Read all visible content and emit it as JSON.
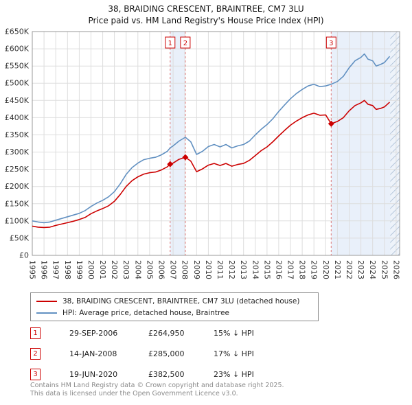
{
  "title": {
    "line1": "38, BRAIDING CRESCENT, BRAINTREE, CM7 3LU",
    "line2": "Price paid vs. HM Land Registry's House Price Index (HPI)"
  },
  "chart_data": {
    "type": "line",
    "title": "38, BRAIDING CRESCENT, BRAINTREE, CM7 3LU — Price paid vs. HPI",
    "x_range": [
      1995,
      2026.3
    ],
    "y_range": [
      0,
      650
    ],
    "y_unit": "£K",
    "grid": true,
    "y_ticks": [
      {
        "value": 0,
        "label": "£0"
      },
      {
        "value": 50,
        "label": "£50K"
      },
      {
        "value": 100,
        "label": "£100K"
      },
      {
        "value": 150,
        "label": "£150K"
      },
      {
        "value": 200,
        "label": "£200K"
      },
      {
        "value": 250,
        "label": "£250K"
      },
      {
        "value": 300,
        "label": "£300K"
      },
      {
        "value": 350,
        "label": "£350K"
      },
      {
        "value": 400,
        "label": "£400K"
      },
      {
        "value": 450,
        "label": "£450K"
      },
      {
        "value": 500,
        "label": "£500K"
      },
      {
        "value": 550,
        "label": "£550K"
      },
      {
        "value": 600,
        "label": "£600K"
      },
      {
        "value": 650,
        "label": "£650K"
      }
    ],
    "x_ticks": [
      "1995",
      "1996",
      "1997",
      "1998",
      "1999",
      "2000",
      "2001",
      "2002",
      "2003",
      "2004",
      "2005",
      "2006",
      "2007",
      "2008",
      "2009",
      "2010",
      "2011",
      "2012",
      "2013",
      "2014",
      "2015",
      "2016",
      "2017",
      "2018",
      "2019",
      "2020",
      "2021",
      "2022",
      "2023",
      "2024",
      "2025",
      "2026"
    ],
    "series": [
      {
        "name": "38, BRAIDING CRESCENT, BRAINTREE, CM7 3LU (detached house)",
        "color": "#cc0000",
        "points": [
          [
            1995,
            85
          ],
          [
            1995.5,
            82
          ],
          [
            1996,
            81
          ],
          [
            1996.5,
            82
          ],
          [
            1997,
            87
          ],
          [
            1997.5,
            91
          ],
          [
            1998,
            95
          ],
          [
            1998.5,
            99
          ],
          [
            1999,
            104
          ],
          [
            1999.5,
            110
          ],
          [
            2000,
            121
          ],
          [
            2000.5,
            129
          ],
          [
            2001,
            136
          ],
          [
            2001.5,
            144
          ],
          [
            2002,
            157
          ],
          [
            2002.5,
            177
          ],
          [
            2003,
            200
          ],
          [
            2003.5,
            217
          ],
          [
            2004,
            228
          ],
          [
            2004.5,
            236
          ],
          [
            2005,
            240
          ],
          [
            2005.5,
            242
          ],
          [
            2006,
            248
          ],
          [
            2006.5,
            257
          ],
          [
            2006.75,
            264.95
          ],
          [
            2007,
            268
          ],
          [
            2007.5,
            279
          ],
          [
            2008.04,
            285
          ],
          [
            2008.5,
            274
          ],
          [
            2009,
            243
          ],
          [
            2009.5,
            251
          ],
          [
            2010,
            262
          ],
          [
            2010.5,
            267
          ],
          [
            2011,
            261
          ],
          [
            2011.5,
            267
          ],
          [
            2012,
            259
          ],
          [
            2012.5,
            264
          ],
          [
            2013,
            267
          ],
          [
            2013.5,
            276
          ],
          [
            2014,
            290
          ],
          [
            2014.5,
            304
          ],
          [
            2015,
            315
          ],
          [
            2015.5,
            330
          ],
          [
            2016,
            347
          ],
          [
            2016.5,
            363
          ],
          [
            2017,
            378
          ],
          [
            2017.5,
            390
          ],
          [
            2018,
            400
          ],
          [
            2018.5,
            408
          ],
          [
            2019,
            413
          ],
          [
            2019.5,
            407
          ],
          [
            2020,
            408
          ],
          [
            2020.47,
            382.5
          ],
          [
            2021,
            389
          ],
          [
            2021.5,
            400
          ],
          [
            2022,
            420
          ],
          [
            2022.5,
            435
          ],
          [
            2023,
            443
          ],
          [
            2023.3,
            450
          ],
          [
            2023.6,
            439
          ],
          [
            2024,
            435
          ],
          [
            2024.3,
            424
          ],
          [
            2024.7,
            427
          ],
          [
            2025,
            431
          ],
          [
            2025.45,
            445
          ]
        ]
      },
      {
        "name": "HPI: Average price, detached house, Braintree",
        "color": "#6190c1",
        "points": [
          [
            1995,
            100
          ],
          [
            1995.5,
            97
          ],
          [
            1996,
            95
          ],
          [
            1996.5,
            97
          ],
          [
            1997,
            102
          ],
          [
            1997.5,
            107
          ],
          [
            1998,
            112
          ],
          [
            1998.5,
            117
          ],
          [
            1999,
            122
          ],
          [
            1999.5,
            130
          ],
          [
            2000,
            142
          ],
          [
            2000.5,
            152
          ],
          [
            2001,
            160
          ],
          [
            2001.5,
            170
          ],
          [
            2002,
            185
          ],
          [
            2002.5,
            208
          ],
          [
            2003,
            235
          ],
          [
            2003.5,
            255
          ],
          [
            2004,
            268
          ],
          [
            2004.5,
            278
          ],
          [
            2005,
            282
          ],
          [
            2005.5,
            285
          ],
          [
            2006,
            292
          ],
          [
            2006.5,
            302
          ],
          [
            2006.75,
            312
          ],
          [
            2007,
            318
          ],
          [
            2007.5,
            332
          ],
          [
            2008.04,
            343
          ],
          [
            2008.5,
            330
          ],
          [
            2009,
            293
          ],
          [
            2009.5,
            302
          ],
          [
            2010,
            316
          ],
          [
            2010.5,
            322
          ],
          [
            2011,
            315
          ],
          [
            2011.5,
            322
          ],
          [
            2012,
            312
          ],
          [
            2012.5,
            318
          ],
          [
            2013,
            322
          ],
          [
            2013.5,
            332
          ],
          [
            2014,
            350
          ],
          [
            2014.5,
            366
          ],
          [
            2015,
            380
          ],
          [
            2015.5,
            397
          ],
          [
            2016,
            418
          ],
          [
            2016.5,
            437
          ],
          [
            2017,
            455
          ],
          [
            2017.5,
            470
          ],
          [
            2018,
            482
          ],
          [
            2018.5,
            492
          ],
          [
            2019,
            497
          ],
          [
            2019.5,
            490
          ],
          [
            2020,
            492
          ],
          [
            2020.47,
            497
          ],
          [
            2021,
            505
          ],
          [
            2021.5,
            520
          ],
          [
            2022,
            545
          ],
          [
            2022.5,
            565
          ],
          [
            2023,
            575
          ],
          [
            2023.3,
            585
          ],
          [
            2023.6,
            570
          ],
          [
            2024,
            565
          ],
          [
            2024.3,
            550
          ],
          [
            2024.7,
            555
          ],
          [
            2025,
            560
          ],
          [
            2025.45,
            578
          ]
        ]
      }
    ],
    "sales": [
      {
        "n": "1",
        "x": 2006.75,
        "y": 264.95
      },
      {
        "n": "2",
        "x": 2008.04,
        "y": 285
      },
      {
        "n": "3",
        "x": 2020.47,
        "y": 382.5
      }
    ],
    "ownership_periods": [
      [
        2006.75,
        2008.04
      ],
      [
        2020.47,
        2026.3
      ]
    ],
    "future_region": [
      2025.5,
      2026.3
    ],
    "colors": {
      "property": "#cc0000",
      "hpi": "#6190c1",
      "sale_line": "#dd7777",
      "ownership_fill": "#e9f0fa",
      "hatch_bg": "#eef3fa",
      "hatch_line": "#a8bcd4",
      "grid": "#dddddd",
      "border": "#999999",
      "tick_text": "#333333"
    },
    "legend_position": "bottom"
  },
  "legend": {
    "items": [
      {
        "label": "38, BRAIDING CRESCENT, BRAINTREE, CM7 3LU (detached house)"
      },
      {
        "label": "HPI: Average price, detached house, Braintree"
      }
    ]
  },
  "sales_table": {
    "rows": [
      {
        "num": "1",
        "date": "29-SEP-2006",
        "price": "£264,950",
        "vs_hpi": "15% ↓ HPI"
      },
      {
        "num": "2",
        "date": "14-JAN-2008",
        "price": "£285,000",
        "vs_hpi": "17% ↓ HPI"
      },
      {
        "num": "3",
        "date": "19-JUN-2020",
        "price": "£382,500",
        "vs_hpi": "23% ↓ HPI"
      }
    ]
  },
  "footer": {
    "line1": "Contains HM Land Registry data © Crown copyright and database right 2025.",
    "line2": "This data is licensed under the Open Government Licence v3.0."
  }
}
